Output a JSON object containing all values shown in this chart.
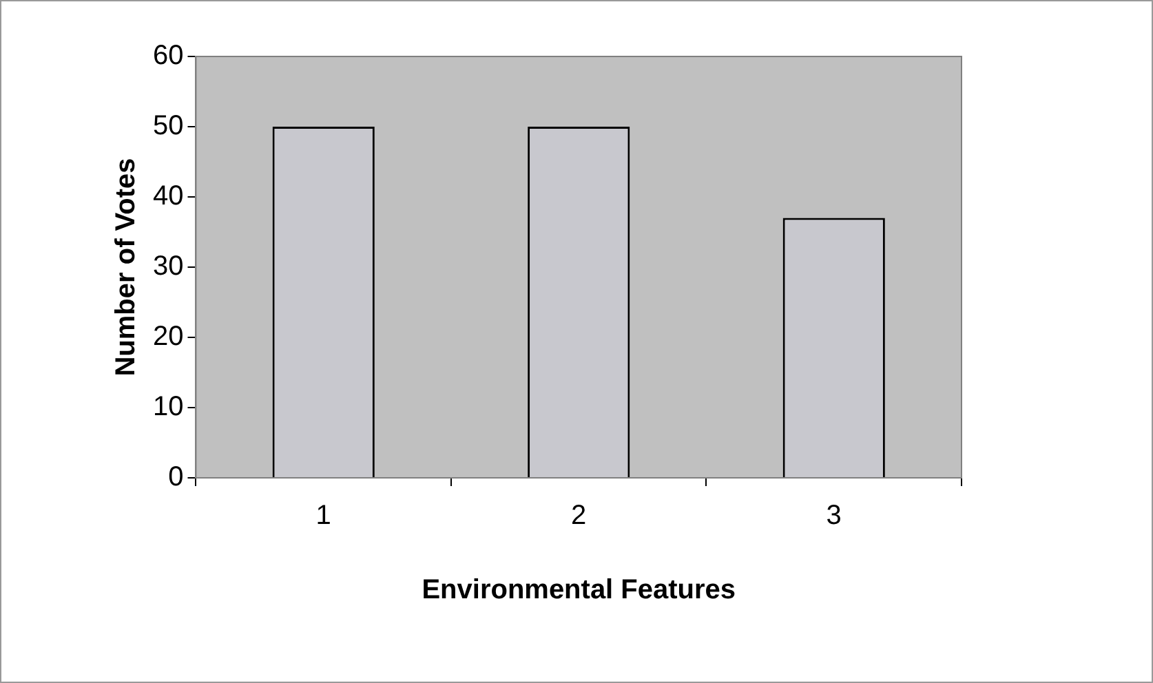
{
  "chart_data": {
    "type": "bar",
    "xlabel": "Environmental Features",
    "ylabel": "Number of Votes",
    "categories": [
      "1",
      "2",
      "3"
    ],
    "values": [
      50,
      50,
      37
    ],
    "color": "#c8c8ce",
    "ylim": [
      0,
      60
    ],
    "yticks": [
      0,
      10,
      20,
      30,
      40,
      50,
      60
    ],
    "grid": false,
    "legend": false
  }
}
